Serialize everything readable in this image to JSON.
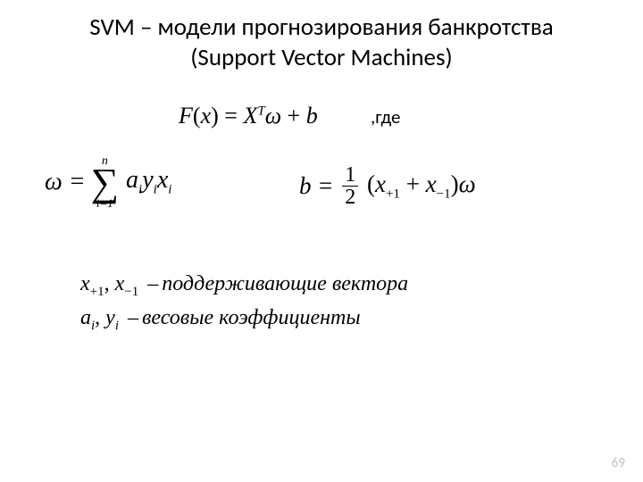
{
  "title_line1": "SVM – модели прогнозирования банкротства",
  "title_line2": "(Support Vector Machines)",
  "main_equation": {
    "lhs": "F",
    "arg": "x",
    "rhs_X": "X",
    "rhs_sup": "T",
    "rhs_omega": "ω",
    "rhs_plus": "+",
    "rhs_b": "b"
  },
  "gde_label": ",где",
  "omega_equation": {
    "lhs": "ω =",
    "sigma_upper": "n",
    "sigma_symbol": "∑",
    "sigma_lower": "i=1",
    "term": "a",
    "term_sub1": "i",
    "term2": "y",
    "term2_sub": "i",
    "term3": "x",
    "term3_sub": "i"
  },
  "b_equation": {
    "lhs": "b =",
    "frac_num": "1",
    "frac_den": "2",
    "open": "(",
    "x1": "x",
    "x1_sub": "+1",
    "plus": "+",
    "x2": "x",
    "x2_sub": "−1",
    "close": ")",
    "omega": "ω"
  },
  "defs": {
    "line1_a": "x",
    "line1_a_sub": "+1",
    "line1_comma": ", ",
    "line1_b": "x",
    "line1_b_sub": "−1",
    "line1_text": "поддерживающие вектора",
    "line2_a": "a",
    "line2_a_sub": "i",
    "line2_comma": ", ",
    "line2_b": "y",
    "line2_b_sub": "i",
    "line2_text": "весовые коэффициенты"
  },
  "page_number": "69",
  "colors": {
    "background": "#ffffff",
    "text": "#000000",
    "pagenum": "#bfbfbf"
  },
  "fonts": {
    "title_family": "Calibri",
    "math_family": "Times New Roman",
    "title_size_pt": 27,
    "math_size_pt": 26,
    "defs_size_pt": 24,
    "pagenum_size_pt": 15
  }
}
